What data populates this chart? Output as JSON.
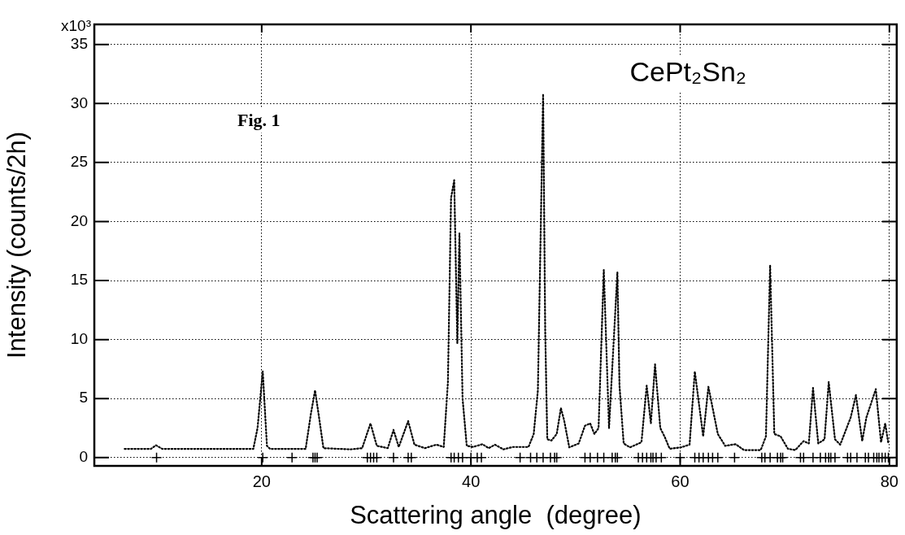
{
  "chart_data": {
    "type": "line",
    "title": "CePt₂Sn₂",
    "xlabel": "Scattering angle  (degree)",
    "ylabel": "Intensity (counts/2h)",
    "annotations": [
      "Fig. 1",
      "x10³"
    ],
    "xlim": [
      4,
      80.7
    ],
    "xticks": [
      20,
      40,
      60,
      80
    ],
    "ylim": [
      -0.7,
      36.7
    ],
    "yticks": [
      0,
      5,
      10,
      15,
      20,
      25,
      30,
      35
    ],
    "grid": true,
    "series": [
      {
        "color": "#000000",
        "line_style": "dotted",
        "marker": "none",
        "x": [
          6.9,
          9.4,
          9.9,
          10.5,
          19.2,
          19.6,
          20.1,
          20.5,
          20.8,
          24.2,
          24.7,
          25.1,
          25.5,
          25.9,
          28.5,
          29.6,
          30.4,
          31.0,
          32.05,
          32.6,
          33.1,
          34.0,
          34.6,
          35.6,
          36.7,
          37.4,
          37.8,
          38.1,
          38.4,
          38.7,
          38.9,
          39.2,
          39.6,
          40.2,
          41.1,
          41.7,
          42.3,
          43.1,
          44.0,
          45.5,
          46.0,
          46.4,
          46.9,
          47.1,
          47.3,
          47.7,
          48.2,
          48.6,
          48.9,
          49.4,
          50.3,
          50.9,
          51.4,
          51.8,
          52.2,
          52.7,
          53.2,
          54.0,
          54.2,
          54.6,
          55.2,
          56.3,
          56.8,
          57.2,
          57.6,
          58.1,
          58.5,
          59.0,
          60.1,
          60.9,
          61.4,
          62.2,
          62.7,
          63.6,
          64.3,
          65.3,
          66.1,
          67.7,
          68.2,
          68.6,
          69.0,
          69.6,
          70.3,
          71.0,
          71.8,
          72.3,
          72.7,
          73.2,
          73.8,
          74.2,
          74.8,
          75.3,
          76.3,
          76.8,
          77.4,
          77.8,
          78.7,
          79.2,
          79.6,
          79.9
        ],
        "values": [
          0.74,
          0.74,
          1.05,
          0.74,
          0.74,
          2.5,
          7.3,
          1.0,
          0.74,
          0.74,
          3.7,
          5.7,
          3.3,
          0.8,
          0.7,
          0.8,
          2.9,
          1.0,
          0.8,
          2.35,
          0.9,
          3.1,
          1.1,
          0.8,
          1.1,
          0.9,
          6.4,
          22,
          23.5,
          9.7,
          19,
          5,
          1.0,
          0.9,
          1.14,
          0.8,
          1.1,
          0.7,
          0.9,
          0.9,
          2.0,
          5.7,
          30.8,
          10.7,
          1.55,
          1.45,
          2.0,
          4.2,
          3.2,
          0.87,
          1.2,
          2.7,
          2.9,
          2.0,
          2.5,
          15.9,
          2.5,
          15.7,
          6.1,
          1.2,
          0.87,
          1.3,
          6.1,
          2.9,
          7.9,
          2.5,
          1.8,
          0.75,
          0.87,
          1.1,
          7.3,
          1.8,
          6.0,
          2.0,
          1.0,
          1.14,
          0.64,
          0.64,
          1.8,
          16.3,
          2.0,
          1.8,
          0.75,
          0.64,
          1.4,
          1.2,
          5.9,
          1.2,
          1.55,
          6.4,
          1.55,
          1.1,
          3.4,
          5.3,
          1.4,
          3.4,
          5.8,
          1.3,
          2.9,
          1.2
        ]
      },
      {
        "type": "scatter",
        "color": "#000000",
        "marker": "cross",
        "x": [
          9.95,
          20.1,
          22.9,
          24.9,
          25.1,
          25.3,
          30.1,
          30.4,
          30.7,
          31.0,
          32.6,
          34.0,
          34.3,
          38.1,
          38.4,
          38.8,
          39.2,
          40.0,
          40.6,
          41.0,
          44.7,
          45.7,
          46.3,
          46.9,
          47.6,
          48.0,
          48.2,
          50.9,
          51.4,
          52.1,
          52.7,
          53.5,
          53.8,
          54.0,
          56.0,
          56.4,
          56.8,
          57.2,
          57.4,
          57.7,
          58.2,
          60.0,
          61.4,
          61.8,
          62.2,
          62.7,
          63.1,
          63.6,
          65.2,
          67.8,
          68.1,
          68.6,
          69.3,
          69.6,
          69.8,
          71.5,
          71.8,
          72.7,
          73.4,
          73.9,
          74.2,
          74.4,
          74.8,
          76.0,
          76.3,
          76.9,
          77.7,
          78.0,
          78.5,
          78.8,
          79.0,
          79.3,
          79.6,
          79.9
        ],
        "values": [
          0,
          0,
          0,
          0,
          0,
          0,
          0,
          0,
          0,
          0,
          0,
          0,
          0,
          0,
          0,
          0,
          0,
          0,
          0,
          0,
          0,
          0,
          0,
          0,
          0,
          0,
          0,
          0,
          0,
          0,
          0,
          0,
          0,
          0,
          0,
          0,
          0,
          0,
          0,
          0,
          0,
          0,
          0,
          0,
          0,
          0,
          0,
          0,
          0,
          0,
          0,
          0,
          0,
          0,
          0,
          0,
          0,
          0,
          0,
          0,
          0,
          0,
          0,
          0,
          0,
          0,
          0,
          0,
          0,
          0,
          0,
          0,
          0,
          0
        ]
      }
    ]
  }
}
